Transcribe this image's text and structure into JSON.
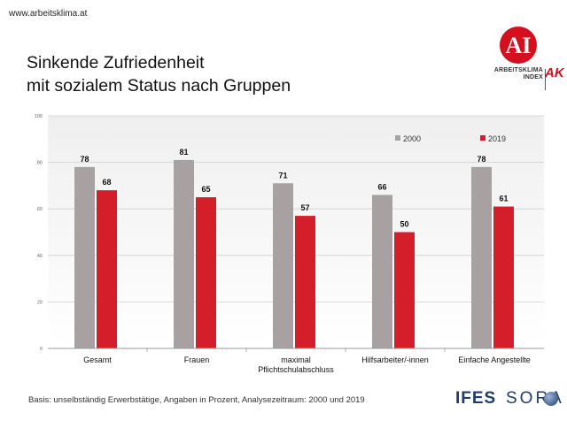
{
  "header": {
    "website": "www.arbeitsklima.at",
    "title_line1": "Sinkende Zufriedenheit",
    "title_line2": "mit sozialem Status nach Gruppen"
  },
  "logo": {
    "monogram": "AI",
    "text_line1": "ARBEITSKLIMA",
    "text_line2": "INDEX",
    "ak": "AK"
  },
  "footer": {
    "note": "Basis: unselbständig Erwerbstätige, Angaben in Prozent, Analysezeitraum: 2000 und 2019",
    "ifes_logo": "IFES",
    "sora_logo": "SORA"
  },
  "colors": {
    "s2000": "#a7a2a1",
    "s2019": "#d41f2b",
    "plot_bg_top": "#f7f7f7",
    "plot_bg_bottom": "#ffffff",
    "logo_red": "#d40f1e",
    "brand_blue": "#1f3b6e"
  },
  "chart_data": {
    "type": "bar",
    "categories": [
      "Gesamt",
      "Frauen",
      "maximal Pflichtschulabschluss",
      "Hilfsarbeiter/-innen",
      "Einfache Angestellte"
    ],
    "category_lines": [
      [
        "Gesamt"
      ],
      [
        "Frauen"
      ],
      [
        "maximal",
        "Pflichtschulabschluss"
      ],
      [
        "Hilfsarbeiter/-innen"
      ],
      [
        "Einfache Angestellte"
      ]
    ],
    "series": [
      {
        "name": "2000",
        "values": [
          78,
          81,
          71,
          66,
          78
        ]
      },
      {
        "name": "2019",
        "values": [
          68,
          65,
          57,
          50,
          61
        ]
      }
    ],
    "ylim": [
      0,
      100
    ],
    "yticks": [
      0,
      20,
      40,
      60,
      80,
      100
    ],
    "grid": true,
    "legend_position": "top-right",
    "data_labels": true
  }
}
